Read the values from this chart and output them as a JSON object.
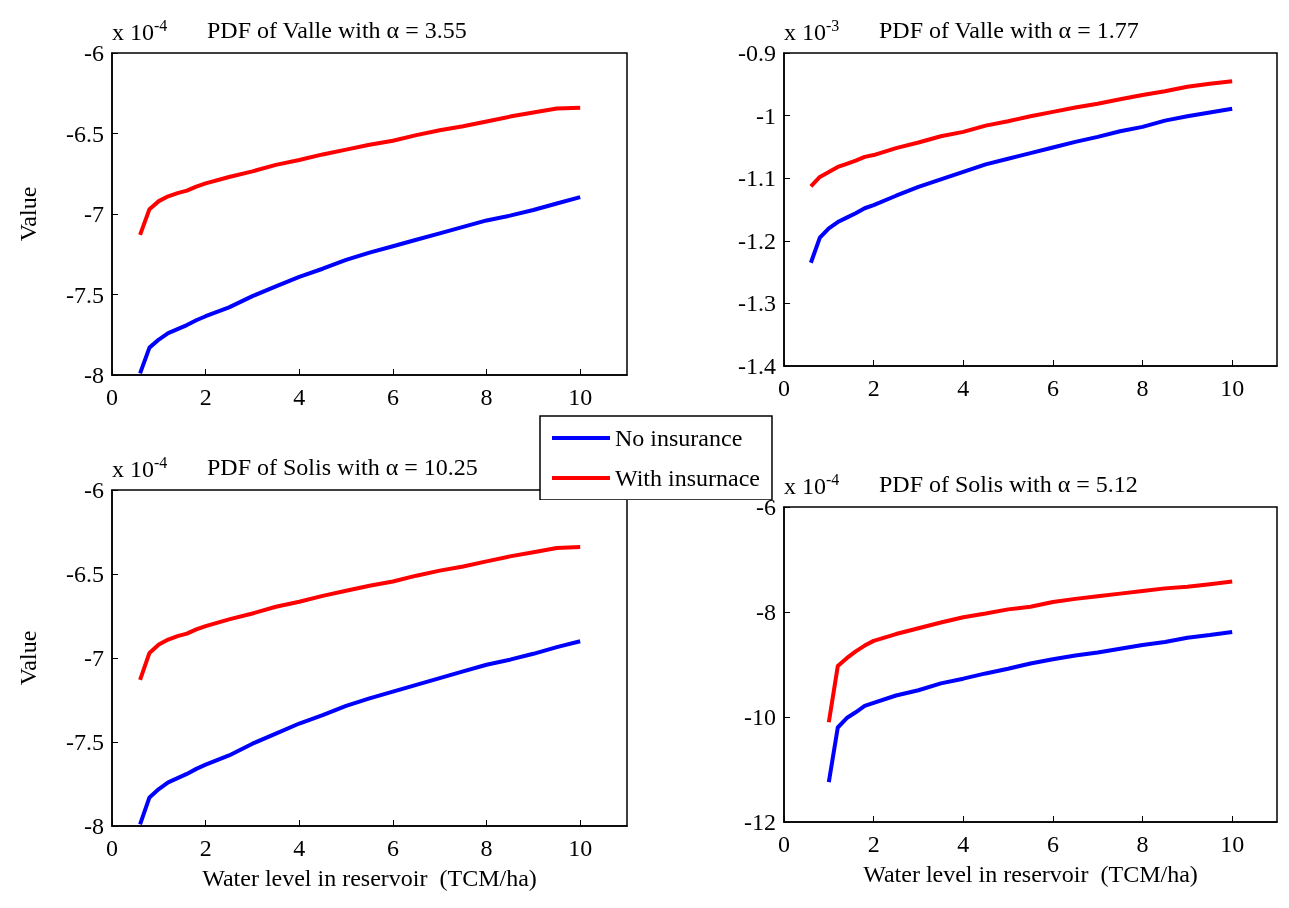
{
  "chart_data": [
    {
      "type": "line",
      "title": "PDF of Valle with α = 3.55",
      "ylabel": "Value",
      "annotations": [
        "x 10$^{-4}$"
      ],
      "legend": "bottom right",
      "x": [
        0.6,
        0.8,
        1.0,
        1.2,
        1.4,
        1.6,
        1.8,
        2,
        2.5,
        3,
        3.5,
        4,
        4.5,
        5,
        5.5,
        6,
        6.5,
        7,
        7.5,
        8,
        8.5,
        9,
        9.5,
        10
      ],
      "xlim": [
        0,
        11
      ],
      "xticks": [
        0,
        2,
        4,
        6,
        8,
        10
      ],
      "ylim": [
        -8,
        -6
      ],
      "yticks": [
        -8,
        -7.5,
        -7,
        -6.5,
        -6
      ],
      "series": [
        {
          "name": "No insurance",
          "color": "#0000ff",
          "values": [
            -7.99,
            -7.83,
            -7.78,
            -7.74,
            -7.715,
            -7.69,
            -7.66,
            -7.635,
            -7.58,
            -7.51,
            -7.45,
            -7.39,
            -7.34,
            -7.285,
            -7.24,
            -7.2,
            -7.16,
            -7.12,
            -7.08,
            -7.04,
            -7.01,
            -6.975,
            -6.935,
            -6.895
          ]
        },
        {
          "name": "With insurnace",
          "color": "#ff0000",
          "values": [
            -7.13,
            -6.97,
            -6.92,
            -6.89,
            -6.87,
            -6.855,
            -6.83,
            -6.81,
            -6.77,
            -6.735,
            -6.695,
            -6.665,
            -6.63,
            -6.6,
            -6.57,
            -6.545,
            -6.51,
            -6.48,
            -6.455,
            -6.425,
            -6.395,
            -6.37,
            -6.345,
            -6.34
          ]
        }
      ]
    },
    {
      "type": "line",
      "title": "PDF of Valle with α = 1.77",
      "annotations": [
        "x 10$^{-3}$"
      ],
      "x": [
        0.6,
        0.8,
        1.0,
        1.2,
        1.4,
        1.6,
        1.8,
        2,
        2.5,
        3,
        3.5,
        4,
        4.5,
        5,
        5.5,
        6,
        6.5,
        7,
        7.5,
        8,
        8.5,
        9,
        9.5,
        10
      ],
      "xlim": [
        0,
        11
      ],
      "xticks": [
        0,
        2,
        4,
        6,
        8,
        10
      ],
      "ylim": [
        -1.4,
        -0.9
      ],
      "yticks": [
        -1.4,
        -1.3,
        -1.2,
        -1.1,
        -1,
        -0.9
      ],
      "series": [
        {
          "color": "#0000ff",
          "values": [
            -1.235,
            -1.195,
            -1.18,
            -1.17,
            -1.163,
            -1.156,
            -1.148,
            -1.143,
            -1.128,
            -1.114,
            -1.102,
            -1.09,
            -1.078,
            -1.069,
            -1.06,
            -1.051,
            -1.042,
            -1.034,
            -1.025,
            -1.018,
            -1.008,
            -1.001,
            -0.995,
            -0.989
          ]
        },
        {
          "color": "#ff0000",
          "values": [
            -1.113,
            -1.098,
            -1.09,
            -1.082,
            -1.077,
            -1.072,
            -1.066,
            -1.063,
            -1.052,
            -1.043,
            -1.033,
            -1.026,
            -1.016,
            -1.009,
            -1.001,
            -0.994,
            -0.987,
            -0.981,
            -0.974,
            -0.967,
            -0.961,
            -0.954,
            -0.949,
            -0.945
          ]
        }
      ]
    },
    {
      "type": "line",
      "title": "PDF of Solis with α = 10.25",
      "ylabel": "Value",
      "xlabel": "Water level in reservoir  (TCM/ha)",
      "annotations": [
        "x 10$^{-4}$"
      ],
      "x": [
        0.6,
        0.8,
        1.0,
        1.2,
        1.4,
        1.6,
        1.8,
        2,
        2.5,
        3,
        3.5,
        4,
        4.5,
        5,
        5.5,
        6,
        6.5,
        7,
        7.5,
        8,
        8.5,
        9,
        9.5,
        10
      ],
      "xlim": [
        0,
        11
      ],
      "xticks": [
        0,
        2,
        4,
        6,
        8,
        10
      ],
      "ylim": [
        -8,
        -6
      ],
      "yticks": [
        -8,
        -7.5,
        -7,
        -6.5,
        -6
      ],
      "series": [
        {
          "color": "#0000ff",
          "values": [
            -7.99,
            -7.83,
            -7.78,
            -7.74,
            -7.715,
            -7.69,
            -7.66,
            -7.635,
            -7.58,
            -7.51,
            -7.45,
            -7.39,
            -7.34,
            -7.285,
            -7.24,
            -7.2,
            -7.16,
            -7.12,
            -7.08,
            -7.04,
            -7.01,
            -6.975,
            -6.935,
            -6.9
          ]
        },
        {
          "color": "#ff0000",
          "values": [
            -7.13,
            -6.97,
            -6.92,
            -6.89,
            -6.87,
            -6.855,
            -6.83,
            -6.81,
            -6.77,
            -6.735,
            -6.695,
            -6.665,
            -6.63,
            -6.6,
            -6.57,
            -6.545,
            -6.51,
            -6.48,
            -6.455,
            -6.425,
            -6.395,
            -6.37,
            -6.345,
            -6.34
          ]
        }
      ]
    },
    {
      "type": "line",
      "title": "PDF of Solis with α = 5.12",
      "xlabel": "Water level in reservoir  (TCM/ha)",
      "annotations": [
        "x 10$^{-4}$"
      ],
      "x": [
        1.0,
        1.2,
        1.4,
        1.6,
        1.8,
        2,
        2.5,
        3,
        3.5,
        4,
        4.5,
        5,
        5.5,
        6,
        6.5,
        7,
        7.5,
        8,
        8.5,
        9,
        9.5,
        10
      ],
      "xlim": [
        0,
        11
      ],
      "xticks": [
        0,
        2,
        4,
        6,
        8,
        10
      ],
      "ylim": [
        -12,
        -6
      ],
      "yticks": [
        -12,
        -10,
        -8,
        -6
      ],
      "series": [
        {
          "color": "#0000ff",
          "values": [
            -11.24,
            -10.2,
            -10.02,
            -9.91,
            -9.79,
            -9.73,
            -9.59,
            -9.49,
            -9.36,
            -9.27,
            -9.17,
            -9.08,
            -8.98,
            -8.9,
            -8.83,
            -8.77,
            -8.7,
            -8.63,
            -8.57,
            -8.49,
            -8.44,
            -8.38
          ]
        },
        {
          "color": "#ff0000",
          "values": [
            -10.1,
            -9.03,
            -8.88,
            -8.75,
            -8.64,
            -8.55,
            -8.42,
            -8.31,
            -8.2,
            -8.1,
            -8.03,
            -7.95,
            -7.9,
            -7.81,
            -7.75,
            -7.7,
            -7.65,
            -7.6,
            -7.55,
            -7.52,
            -7.47,
            -7.42
          ]
        }
      ]
    }
  ]
}
